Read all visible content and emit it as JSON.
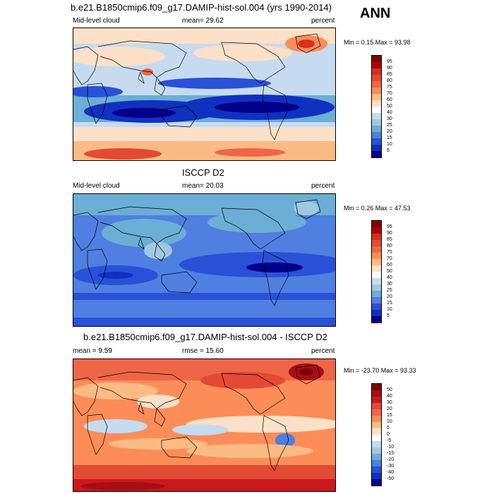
{
  "season": "ANN",
  "panels": [
    {
      "title": "b.e21.B1850cmip6.f09_g17.DAMIP-hist-sol.004 (yrs 1990-2014)",
      "left": "Mid-level cloud",
      "center": "mean=  29.62",
      "right": "percent",
      "stats": "Min =  0.15 Max =  93.98",
      "levels": [
        "95",
        "90",
        "85",
        "80",
        "75",
        "70",
        "60",
        "50",
        "40",
        "30",
        "25",
        "20",
        "15",
        "10",
        "5"
      ],
      "colors": [
        "#7f0000",
        "#b00000",
        "#d7301f",
        "#e34a33",
        "#ef6548",
        "#fc8d59",
        "#fdbb84",
        "#fde0c8",
        "#ffffff",
        "#c6dbef",
        "#9ecae1",
        "#6baed6",
        "#4f7fe0",
        "#2a50d8",
        "#1030c0",
        "#00008b"
      ]
    },
    {
      "title": "ISCCP D2",
      "left": "Mid-level cloud",
      "center": "mean=  20.03",
      "right": "percent",
      "stats": "Min =  0.26 Max =  47.53",
      "levels": [
        "95",
        "90",
        "85",
        "80",
        "75",
        "70",
        "60",
        "50",
        "40",
        "30",
        "25",
        "20",
        "15",
        "10",
        "5"
      ],
      "colors": [
        "#7f0000",
        "#b00000",
        "#d7301f",
        "#e34a33",
        "#ef6548",
        "#fc8d59",
        "#fdbb84",
        "#fde0c8",
        "#ffffff",
        "#c6dbef",
        "#9ecae1",
        "#6baed6",
        "#4f7fe0",
        "#2a50d8",
        "#1030c0",
        "#00008b"
      ]
    },
    {
      "title": "b.e21.B1850cmip6.f09_g17.DAMIP-hist-sol.004 - ISCCP D2",
      "left": "mean =   9.59",
      "center": "rmse =  15.60",
      "right": "percent",
      "stats": "Min = -23.70 Max =  93.33",
      "levels": [
        "50",
        "40",
        "30",
        "20",
        "15",
        "10",
        "5",
        "0",
        "-5",
        "-10",
        "-15",
        "-20",
        "-30",
        "-40",
        "-50"
      ],
      "colors": [
        "#7f0000",
        "#a50f15",
        "#cb181d",
        "#e34a33",
        "#ef6548",
        "#fc8d59",
        "#fdbb84",
        "#fde0c8",
        "#ffffff",
        "#c6dbef",
        "#9ecae1",
        "#6baed6",
        "#4f7fe0",
        "#2a50d8",
        "#1030c0",
        "#00008b"
      ]
    }
  ]
}
